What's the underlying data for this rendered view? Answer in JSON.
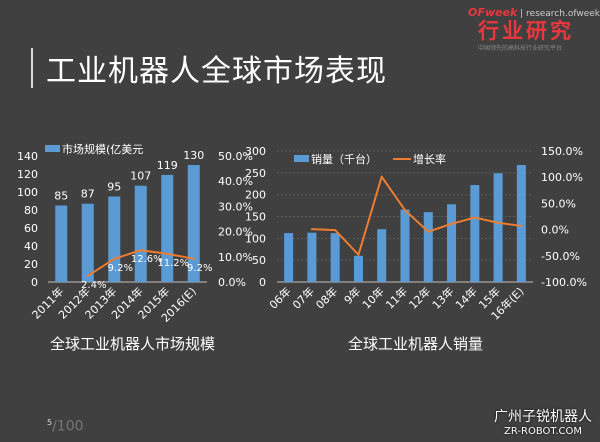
{
  "title": "工业机器人全球市场表现",
  "logo": {
    "brand": "OFweek",
    "url_text": "research.ofweek.com",
    "name": "行业研究",
    "tagline": "中国领先的高科技行业研究平台"
  },
  "captions": {
    "left": "全球工业机器人市场规模",
    "right": "全球工业机器人销量"
  },
  "page": {
    "current": "5",
    "total": "/100"
  },
  "watermark": {
    "line1": "广州子锐机器人",
    "line2": "ZR-ROBOT.COM"
  },
  "colors": {
    "bar": "#5b9bd5",
    "line": "#ed7d31",
    "background": "#404040"
  },
  "chart_data": [
    {
      "type": "bar",
      "categories": [
        "2011年",
        "2012年",
        "2013年",
        "2014年",
        "2015年",
        "2016(E)"
      ],
      "series": [
        {
          "name": "市场规模(亿美元",
          "type": "bar",
          "axis": "left",
          "values": [
            85,
            87,
            95,
            107,
            119,
            130
          ],
          "labels": [
            "85",
            "87",
            "95",
            "107",
            "119",
            "130"
          ]
        },
        {
          "type": "line",
          "axis": "right",
          "values": [
            null,
            2.4,
            9.2,
            12.6,
            11.2,
            9.2
          ],
          "labels": [
            "",
            "2.4%",
            "9.2%",
            "12.6%",
            "11.2%",
            "9.2%"
          ]
        }
      ],
      "ylim": [
        0,
        140
      ],
      "yticks": [
        "0",
        "20",
        "40",
        "60",
        "80",
        "100",
        "120",
        "140"
      ],
      "y2lim": [
        0,
        50
      ],
      "y2ticks": [
        "0.0%",
        "10.0%",
        "20.0%",
        "30.0%",
        "40.0%",
        "50.0%"
      ],
      "grid": false,
      "legend": "top-left"
    },
    {
      "type": "bar",
      "categories": [
        "06年",
        "07年",
        "08年",
        "9年",
        "10年",
        "11年",
        "12年",
        "13年",
        "14年",
        "15年",
        "16年(E)"
      ],
      "series": [
        {
          "name": "销量（千台）",
          "type": "bar",
          "axis": "left",
          "values": [
            112,
            113,
            112,
            60,
            121,
            166,
            160,
            178,
            222,
            249,
            268
          ]
        },
        {
          "name": "增长率",
          "type": "line",
          "axis": "right",
          "values": [
            null,
            1,
            -1,
            -48,
            101,
            37,
            -4,
            11,
            23,
            13,
            7
          ]
        }
      ],
      "ylim": [
        0,
        300
      ],
      "yticks": [
        "0",
        "50",
        "100",
        "150",
        "200",
        "250",
        "300"
      ],
      "y2lim": [
        -100,
        150
      ],
      "y2ticks": [
        "-100.0%",
        "-50.0%",
        "0.0%",
        "50.0%",
        "100.0%",
        "150.0%"
      ],
      "grid": true,
      "legend": "top"
    }
  ]
}
